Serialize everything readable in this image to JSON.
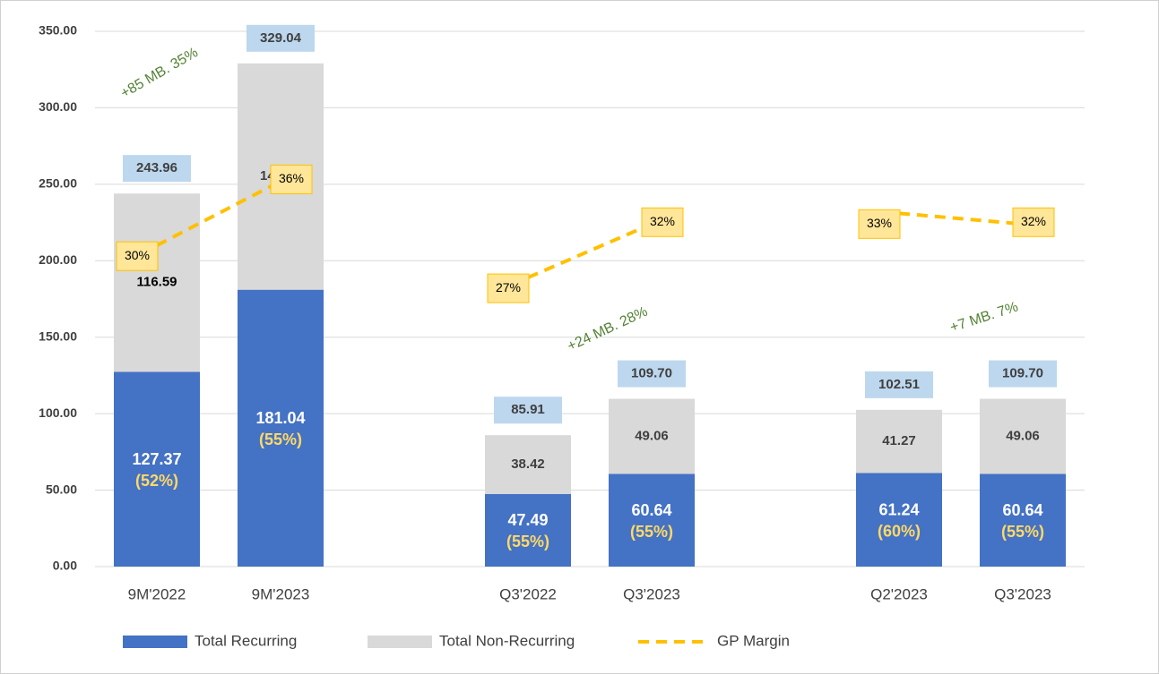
{
  "chart_data": {
    "type": "stacked_bar_line",
    "categories": [
      "9M'2022",
      "9M'2023",
      null,
      "Q3'2022",
      "Q3'2023",
      null,
      "Q2'2023",
      "Q3'2023"
    ],
    "series": [
      {
        "name": "Total Recurring",
        "color": "#4472c4",
        "values": [
          127.37,
          181.04,
          null,
          47.49,
          60.64,
          null,
          61.24,
          60.64
        ],
        "share_labels": [
          "(52%)",
          "(55%)",
          null,
          "(55%)",
          "(55%)",
          null,
          "(60%)",
          "(55%)"
        ]
      },
      {
        "name": "Total Non-Recurring",
        "color": "#d9d9d9",
        "values": [
          116.59,
          147.99,
          null,
          38.42,
          49.06,
          null,
          41.27,
          49.06
        ]
      },
      {
        "name": "GP Margin",
        "color": "#ffc000",
        "axis": "y2",
        "values": [
          30,
          36,
          null,
          27,
          32,
          null,
          33,
          32
        ],
        "value_labels": [
          "30%",
          "36%",
          null,
          "27%",
          "32%",
          null,
          "33%",
          "32%"
        ]
      }
    ],
    "totals": {
      "values": [
        243.96,
        329.04,
        null,
        85.91,
        109.7,
        null,
        102.51,
        109.7
      ],
      "value_labels": [
        "243.96",
        "329.04",
        null,
        "85.91",
        "109.70",
        null,
        "102.51",
        "109.70"
      ]
    },
    "annotations": [
      "+85 MB. 35%",
      "+24 MB. 28%",
      "+7 MB. 7%"
    ],
    "ylim": [
      0,
      350
    ],
    "yticks": [
      {
        "value": 0,
        "label": "0.00"
      },
      {
        "value": 50,
        "label": "50.00"
      },
      {
        "value": 100,
        "label": "100.00"
      },
      {
        "value": 150,
        "label": "150.00"
      },
      {
        "value": 200,
        "label": "200.00"
      },
      {
        "value": 250,
        "label": "250.00"
      },
      {
        "value": 300,
        "label": "300.00"
      },
      {
        "value": 350,
        "label": "350.00"
      }
    ],
    "y2lim": [
      0,
      50
    ],
    "grid": true,
    "legend": "bottom"
  }
}
